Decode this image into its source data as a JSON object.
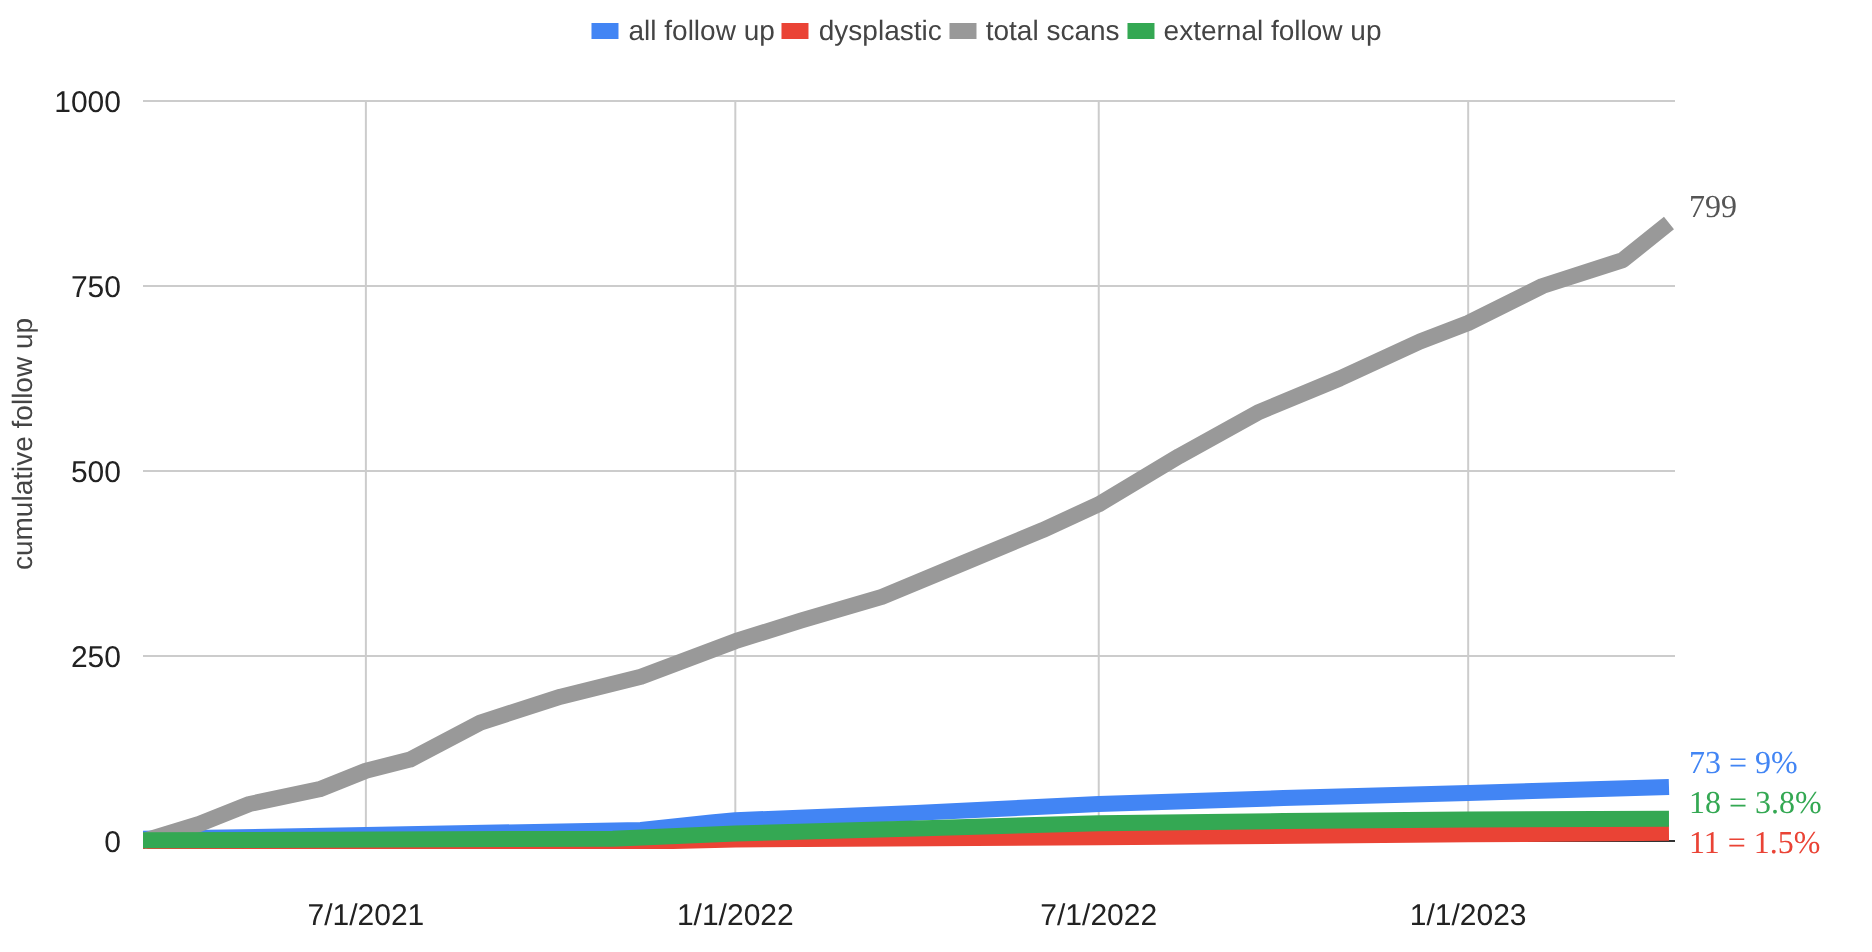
{
  "chart_data": {
    "type": "line",
    "ylabel": "cumulative follow up",
    "xlim": [
      "2021-03-12",
      "2023-04-14"
    ],
    "ylim": [
      0,
      1000
    ],
    "xticks": [
      {
        "value": "2021-07-01",
        "label": "7/1/2021"
      },
      {
        "value": "2022-01-01",
        "label": "1/1/2022"
      },
      {
        "value": "2022-07-01",
        "label": "7/1/2022"
      },
      {
        "value": "2023-01-01",
        "label": "1/1/2023"
      }
    ],
    "yticks": [
      0,
      250,
      500,
      750,
      1000
    ],
    "grid": true,
    "legend": "top",
    "line_style": "solid",
    "marker": "none",
    "series": [
      {
        "name": "all follow up",
        "color": "#4285f4",
        "x": [
          "2021-03-12",
          "2021-07-01",
          "2021-11-15",
          "2021-12-20",
          "2022-01-01",
          "2022-04-01",
          "2022-07-01",
          "2022-10-01",
          "2023-01-01",
          "2023-04-11"
        ],
        "values": [
          3,
          8,
          15,
          25,
          28,
          38,
          50,
          58,
          65,
          73
        ]
      },
      {
        "name": "dysplastic",
        "color": "#ea4335",
        "x": [
          "2021-03-12",
          "2021-12-01",
          "2022-01-01",
          "2022-07-01",
          "2023-01-01",
          "2023-04-11"
        ],
        "values": [
          0,
          0,
          2,
          5,
          9,
          11
        ]
      },
      {
        "name": "total scans",
        "color": "#999999",
        "x": [
          "2021-03-12",
          "2021-04-09",
          "2021-05-04",
          "2021-06-08",
          "2021-07-01",
          "2021-07-23",
          "2021-08-27",
          "2021-10-06",
          "2021-11-15",
          "2022-01-01",
          "2022-02-03",
          "2022-03-15",
          "2022-04-24",
          "2022-06-03",
          "2022-07-01",
          "2022-08-10",
          "2022-09-19",
          "2022-10-29",
          "2022-12-08",
          "2023-01-01",
          "2023-02-07",
          "2023-03-19",
          "2023-04-11"
        ],
        "values": [
          0,
          23,
          50,
          70,
          95,
          110,
          160,
          195,
          222,
          270,
          298,
          330,
          375,
          420,
          455,
          520,
          580,
          625,
          675,
          700,
          750,
          785,
          835
        ]
      },
      {
        "name": "external follow up",
        "color": "#34a853",
        "x": [
          "2021-03-12",
          "2021-11-01",
          "2022-01-01",
          "2022-04-01",
          "2022-07-01",
          "2022-10-01",
          "2023-01-01",
          "2023-04-11"
        ],
        "values": [
          1,
          3,
          10,
          17,
          24,
          27,
          29,
          30
        ]
      }
    ],
    "annotations": [
      {
        "text": "799",
        "x": "2023-04-11",
        "y": 835
      },
      {
        "text": "73 = 9%",
        "x": "2023-04-11",
        "y": 73
      },
      {
        "text": "18 = 3.8%",
        "x": "2023-04-11",
        "y": 30
      },
      {
        "text": "11 = 1.5%",
        "x": "2023-04-11",
        "y": 11
      }
    ]
  }
}
